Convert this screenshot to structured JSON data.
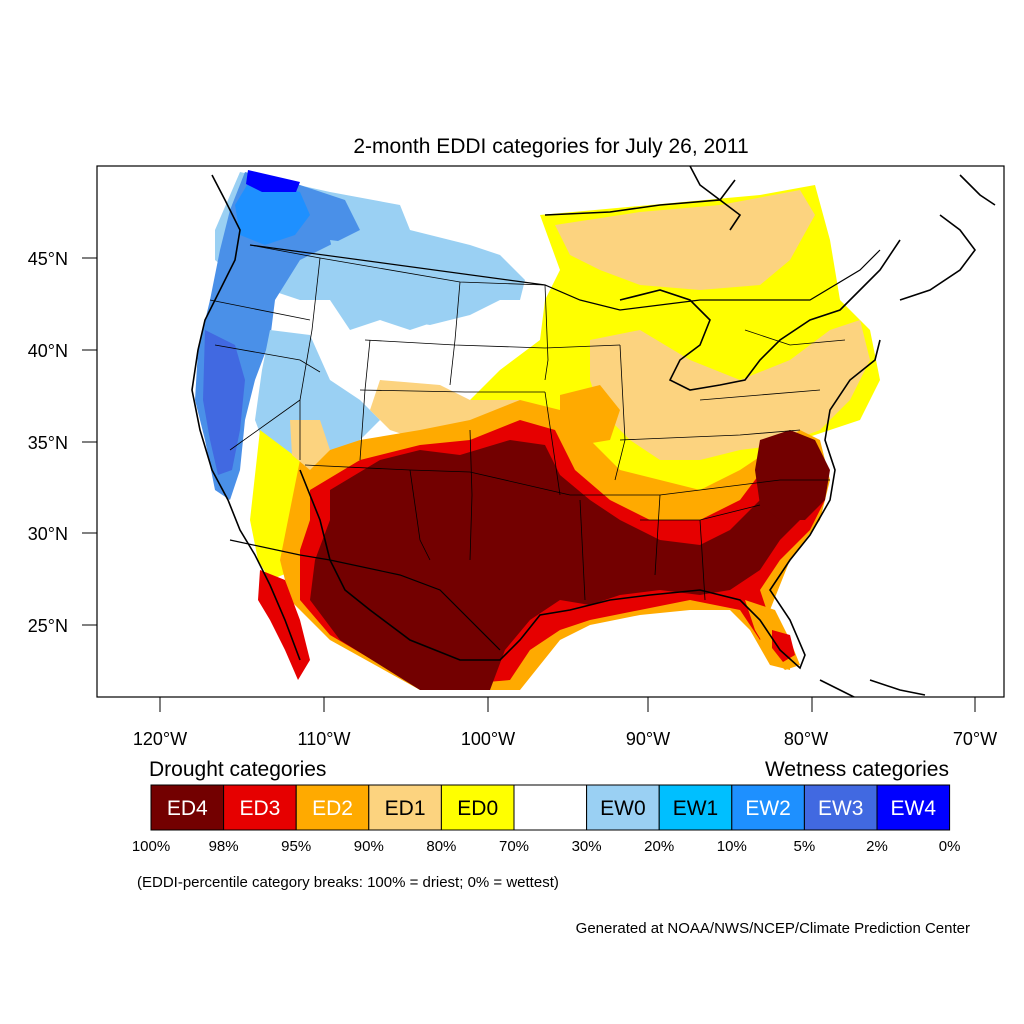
{
  "title": "2-month EDDI categories for July 26, 2011",
  "map": {
    "lat_ticks": [
      "45°N",
      "40°N",
      "35°N",
      "30°N",
      "25°N"
    ],
    "lon_ticks": [
      "120°W",
      "110°W",
      "100°W",
      "90°W",
      "80°W",
      "70°W"
    ]
  },
  "legend": {
    "drought_heading": "Drought categories",
    "wetness_heading": "Wetness categories",
    "categories": [
      {
        "label": "ED4",
        "color": "#730000"
      },
      {
        "label": "ED3",
        "color": "#e60000"
      },
      {
        "label": "ED2",
        "color": "#ffaa00"
      },
      {
        "label": "ED1",
        "color": "#fcd37f"
      },
      {
        "label": "ED0",
        "color": "#ffff00"
      },
      {
        "label": "",
        "color": "#ffffff"
      },
      {
        "label": "EW0",
        "color": "#9ad0f3"
      },
      {
        "label": "EW1",
        "color": "#00bfff"
      },
      {
        "label": "EW2",
        "color": "#1e90ff"
      },
      {
        "label": "EW3",
        "color": "#4169e1"
      },
      {
        "label": "EW4",
        "color": "#0000ff"
      }
    ],
    "breaks": [
      "100%",
      "98%",
      "95%",
      "90%",
      "80%",
      "70%",
      "30%",
      "20%",
      "10%",
      "5%",
      "2%",
      "0%"
    ]
  },
  "note": "(EDDI-percentile category breaks: 100% = driest; 0% = wettest)",
  "credit": "Generated at NOAA/NWS/NCEP/Climate Prediction Center"
}
